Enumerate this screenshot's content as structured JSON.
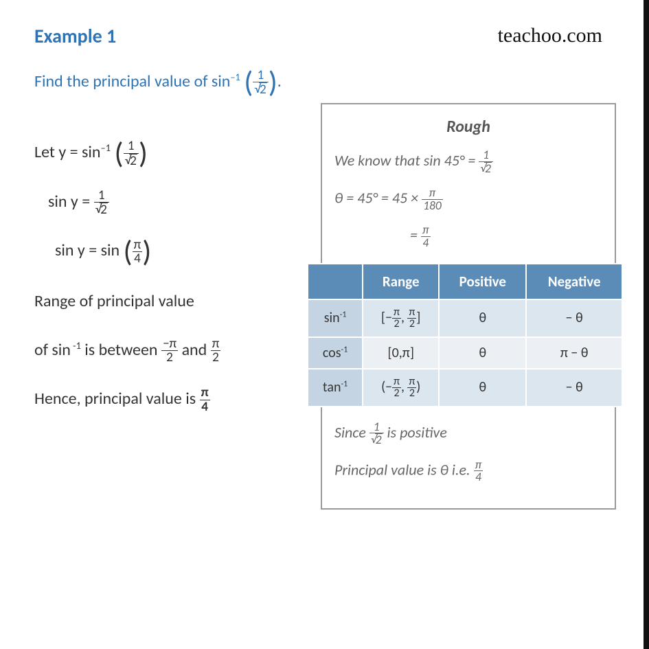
{
  "header": {
    "title": "Example 1",
    "brand": "teachoo.com"
  },
  "problem": {
    "prefix": "Find the principal value of sin",
    "exp": "–1",
    "arg_num": "1",
    "arg_den_rad": "2",
    "suffix": "."
  },
  "main": {
    "line1_a": "Let y = sin",
    "line1_exp": "–1",
    "line1_num": "1",
    "line1_den_rad": "2",
    "line2_a": "sin y = ",
    "line2_num": "1",
    "line2_den_rad": "2",
    "line3_a": "sin y = sin ",
    "line3_num": "π",
    "line3_den": "4",
    "line4": "Range of principal value",
    "line5_a": "of sin",
    "line5_exp": " -1",
    "line5_b": " is between ",
    "line5_frac1_num": "−π",
    "line5_frac1_den": "2",
    "line5_c": " and ",
    "line5_frac2_num": "π",
    "line5_frac2_den": "2",
    "line6_a": "Hence, principal value is ",
    "line6_num": "π",
    "line6_den": "4"
  },
  "rough": {
    "title": "Rough",
    "l1_a": "We know that sin 45° = ",
    "l1_num": "1",
    "l1_den_rad": "2",
    "l2_a": "θ = 45° = 45  × ",
    "l2_num": "π",
    "l2_den": "180",
    "l3_a": "= ",
    "l3_num": "π",
    "l3_den": "4",
    "l4_a": "Since ",
    "l4_num": "1",
    "l4_den_rad": "2",
    "l4_b": " is positive",
    "l5_a": "Principal value is θ i.e. ",
    "l5_num": "π",
    "l5_den": "4"
  },
  "table": {
    "header_blank": "",
    "header_range": "Range",
    "header_pos": "Positive",
    "header_neg": "Negative",
    "r1_func": "sin",
    "r1_exp": "-1",
    "r1_range_open": "[−",
    "r1_range_f1n": "π",
    "r1_range_f1d": "2",
    "r1_range_mid": ", ",
    "r1_range_f2n": "π",
    "r1_range_f2d": "2",
    "r1_range_close": "]",
    "r1_pos": "θ",
    "r1_neg": "− θ",
    "r2_func": "cos",
    "r2_exp": "-1",
    "r2_range": "[0,π]",
    "r2_pos": "θ",
    "r2_neg": "π − θ",
    "r3_func": "tan",
    "r3_exp": "-1",
    "r3_range_open": "(−",
    "r3_range_f1n": "π",
    "r3_range_f1d": "2",
    "r3_range_mid": ", ",
    "r3_range_f2n": "π",
    "r3_range_f2d": "2",
    "r3_range_close": ")",
    "r3_pos": "θ",
    "r3_neg": "− θ"
  },
  "colors": {
    "accent": "#2e74b5",
    "table_header": "#5b8cb8",
    "table_row1": "#dce6ef",
    "table_row2": "#ecf0f5",
    "table_rowhead": "#c5d4e3",
    "rough_text": "#666666",
    "border_right": "#111111"
  }
}
